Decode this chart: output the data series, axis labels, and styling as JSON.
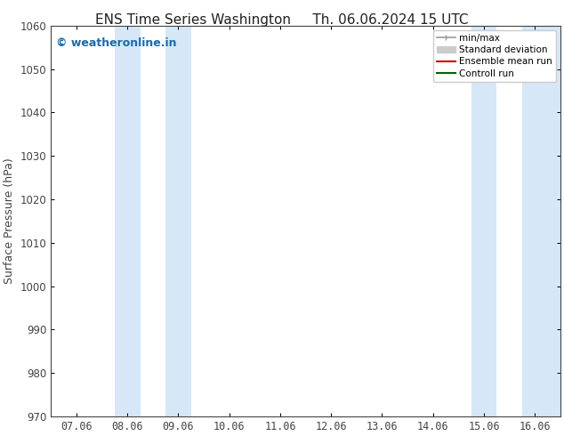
{
  "title_left": "ENS Time Series Washington",
  "title_right": "Th. 06.06.2024 15 UTC",
  "ylabel": "Surface Pressure (hPa)",
  "ylim": [
    970,
    1060
  ],
  "yticks": [
    970,
    980,
    990,
    1000,
    1010,
    1020,
    1030,
    1040,
    1050,
    1060
  ],
  "xtick_labels": [
    "07.06",
    "08.06",
    "09.06",
    "10.06",
    "11.06",
    "12.06",
    "13.06",
    "14.06",
    "15.06",
    "16.06"
  ],
  "xtick_positions": [
    0,
    1,
    2,
    3,
    4,
    5,
    6,
    7,
    8,
    9
  ],
  "shaded_regions": [
    {
      "xmin": 0.75,
      "xmax": 1.25,
      "color": "#d6e8f7"
    },
    {
      "xmin": 1.75,
      "xmax": 2.25,
      "color": "#d6e8f7"
    },
    {
      "xmin": 7.75,
      "xmax": 8.25,
      "color": "#d6e8f7"
    },
    {
      "xmin": 8.75,
      "xmax": 9.5,
      "color": "#d6e8f7"
    }
  ],
  "watermark_text": "© weatheronline.in",
  "watermark_color": "#1a6ab0",
  "watermark_fontsize": 9,
  "legend_items": [
    {
      "label": "min/max",
      "color": "#aaaaaa",
      "lw": 1.5
    },
    {
      "label": "Standard deviation",
      "color": "#cccccc",
      "lw": 5
    },
    {
      "label": "Ensemble mean run",
      "color": "#cc0000",
      "lw": 1.5
    },
    {
      "label": "Controll run",
      "color": "#006600",
      "lw": 1.5
    }
  ],
  "background_color": "#ffffff",
  "plot_bg_color": "#ffffff",
  "tick_color": "#444444",
  "title_fontsize": 11,
  "axis_label_fontsize": 9,
  "tick_fontsize": 8.5,
  "xlim": [
    -0.5,
    9.5
  ]
}
